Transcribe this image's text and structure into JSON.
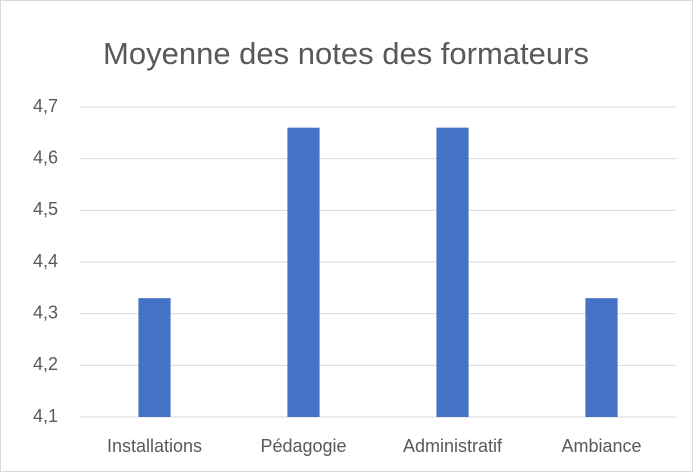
{
  "chart_data": {
    "type": "bar",
    "title": "Moyenne des notes des formateurs",
    "categories": [
      "Installations",
      "Pédagogie",
      "Administratif",
      "Ambiance"
    ],
    "values": [
      4.33,
      4.66,
      4.66,
      4.33
    ],
    "color": "#4472c4",
    "ylim": [
      4.1,
      4.7
    ],
    "yticks": [
      {
        "value": 4.1,
        "label": "4,1"
      },
      {
        "value": 4.2,
        "label": "4,2"
      },
      {
        "value": 4.3,
        "label": "4,3"
      },
      {
        "value": 4.4,
        "label": "4,4"
      },
      {
        "value": 4.5,
        "label": "4,5"
      },
      {
        "value": 4.6,
        "label": "4,6"
      },
      {
        "value": 4.7,
        "label": "4,7"
      }
    ],
    "grid": true
  }
}
